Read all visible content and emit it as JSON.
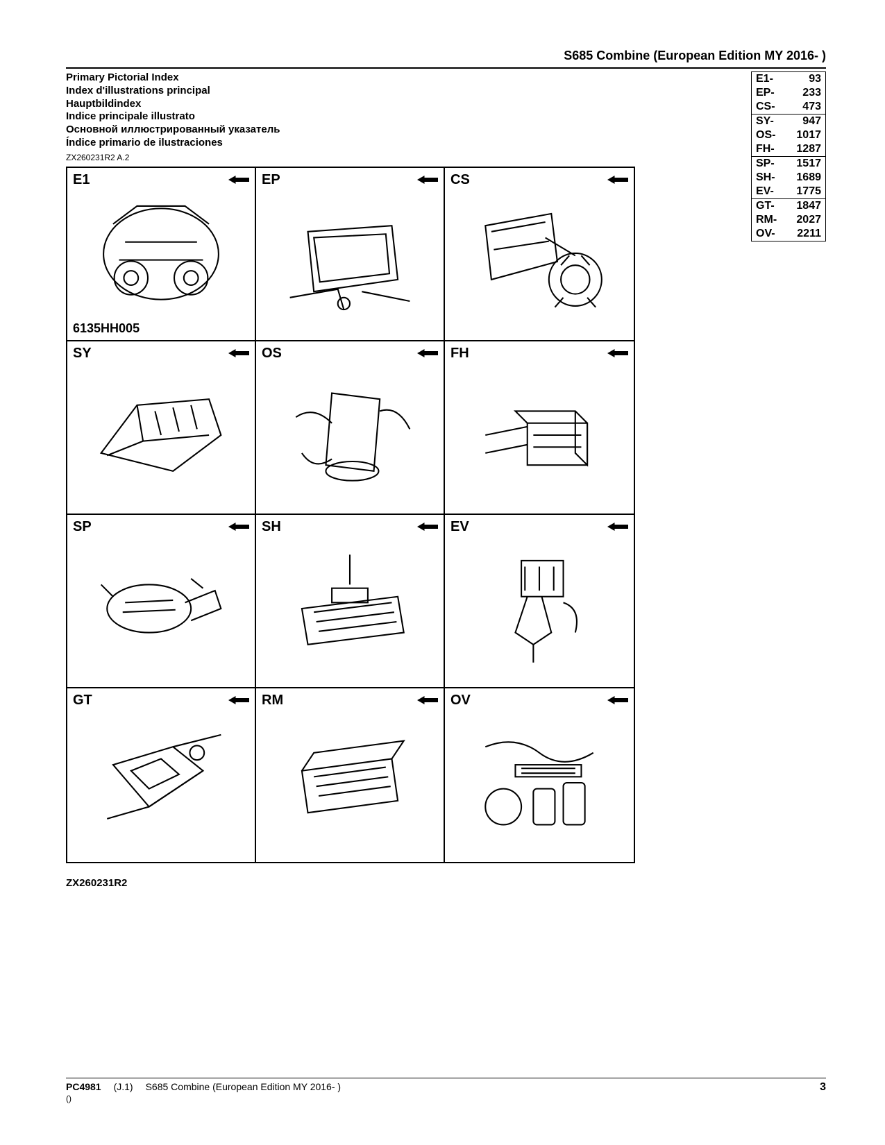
{
  "header": {
    "title": "S685 Combine (European Edition MY 2016- )"
  },
  "titles": [
    "Primary Pictorial Index",
    "Index d'illustrations principal",
    "Hauptbildindex",
    "Indice principale illustrato",
    "Основной иллюстрированный указатель",
    "Índice primario de ilustraciones"
  ],
  "ref_code": "ZX260231R2 A.2",
  "index": [
    {
      "code": "E1-",
      "page": "93",
      "border": false
    },
    {
      "code": "EP-",
      "page": "233",
      "border": false
    },
    {
      "code": "CS-",
      "page": "473",
      "border": true
    },
    {
      "code": "SY-",
      "page": "947",
      "border": false
    },
    {
      "code": "OS-",
      "page": "1017",
      "border": false
    },
    {
      "code": "FH-",
      "page": "1287",
      "border": true
    },
    {
      "code": "SP-",
      "page": "1517",
      "border": false
    },
    {
      "code": "SH-",
      "page": "1689",
      "border": false
    },
    {
      "code": "EV-",
      "page": "1775",
      "border": true
    },
    {
      "code": "GT-",
      "page": "1847",
      "border": false
    },
    {
      "code": "RM-",
      "page": "2027",
      "border": false
    },
    {
      "code": "OV-",
      "page": "2211",
      "border": false
    }
  ],
  "cells": [
    {
      "code": "E1",
      "sub": "6135HH005"
    },
    {
      "code": "EP",
      "sub": ""
    },
    {
      "code": "CS",
      "sub": ""
    },
    {
      "code": "SY",
      "sub": ""
    },
    {
      "code": "OS",
      "sub": ""
    },
    {
      "code": "FH",
      "sub": ""
    },
    {
      "code": "SP",
      "sub": ""
    },
    {
      "code": "SH",
      "sub": ""
    },
    {
      "code": "EV",
      "sub": ""
    },
    {
      "code": "GT",
      "sub": ""
    },
    {
      "code": "RM",
      "sub": ""
    },
    {
      "code": "OV",
      "sub": ""
    }
  ],
  "bottom_code": "ZX260231R2",
  "footer": {
    "pc": "PC4981",
    "rev": "(J.1)",
    "desc": "S685 Combine (European Edition MY 2016- )",
    "page": "3",
    "sub": "()"
  }
}
